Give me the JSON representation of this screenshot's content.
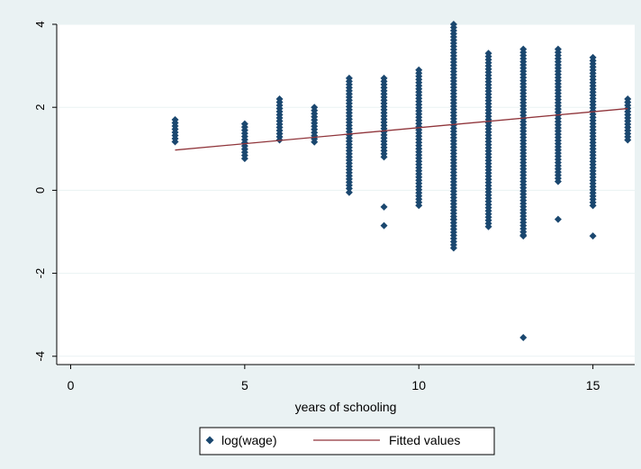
{
  "chart_data": {
    "type": "scatter",
    "xlabel": "years of schooling",
    "ylabel": "",
    "xlim": [
      -0.4,
      16.2
    ],
    "ylim": [
      -4.2,
      4.0
    ],
    "x_ticks": [
      "0",
      "5",
      "10",
      "15"
    ],
    "y_ticks": [
      "-4",
      "-2",
      "0",
      "2",
      "4"
    ],
    "grid": "horizontal",
    "legend_position": "bottom-center",
    "colors": {
      "points": "#1a476f",
      "fit": "#90353b",
      "plot_bg": "#ffffff",
      "outer_bg": "#eaf2f3"
    },
    "series": [
      {
        "name": "log(wage)",
        "kind": "scatter",
        "columns": [
          {
            "x": 3,
            "y_min": 1.15,
            "y_max": 1.7
          },
          {
            "x": 5,
            "y_min": 0.7,
            "y_max": 1.6
          },
          {
            "x": 6,
            "y_min": 1.2,
            "y_max": 2.2
          },
          {
            "x": 7,
            "y_min": 1.1,
            "y_max": 2.0
          },
          {
            "x": 8,
            "y_min": 0.0,
            "y_max": 2.7
          },
          {
            "x": 9,
            "y_min": 0.8,
            "y_max": 2.7
          },
          {
            "x": 10,
            "y_min": -0.4,
            "y_max": 2.9
          },
          {
            "x": 11,
            "y_min": -1.4,
            "y_max": 4.0
          },
          {
            "x": 12,
            "y_min": -0.9,
            "y_max": 3.3
          },
          {
            "x": 13,
            "y_min": -1.1,
            "y_max": 3.4
          },
          {
            "x": 14,
            "y_min": 0.2,
            "y_max": 3.4
          },
          {
            "x": 15,
            "y_min": -0.4,
            "y_max": 3.2
          },
          {
            "x": 16,
            "y_min": 1.2,
            "y_max": 2.2
          }
        ],
        "outliers": [
          {
            "x": 9,
            "y": -0.4
          },
          {
            "x": 9,
            "y": -0.85
          },
          {
            "x": 11,
            "y": -0.7
          },
          {
            "x": 13,
            "y": -1.1
          },
          {
            "x": 13,
            "y": -3.55
          },
          {
            "x": 14,
            "y": -0.7
          },
          {
            "x": 15,
            "y": -1.1
          },
          {
            "x": 8,
            "y": -0.05
          }
        ]
      },
      {
        "name": "Fitted values",
        "kind": "line",
        "x": [
          3,
          16
        ],
        "y": [
          0.97,
          1.97
        ]
      }
    ]
  }
}
